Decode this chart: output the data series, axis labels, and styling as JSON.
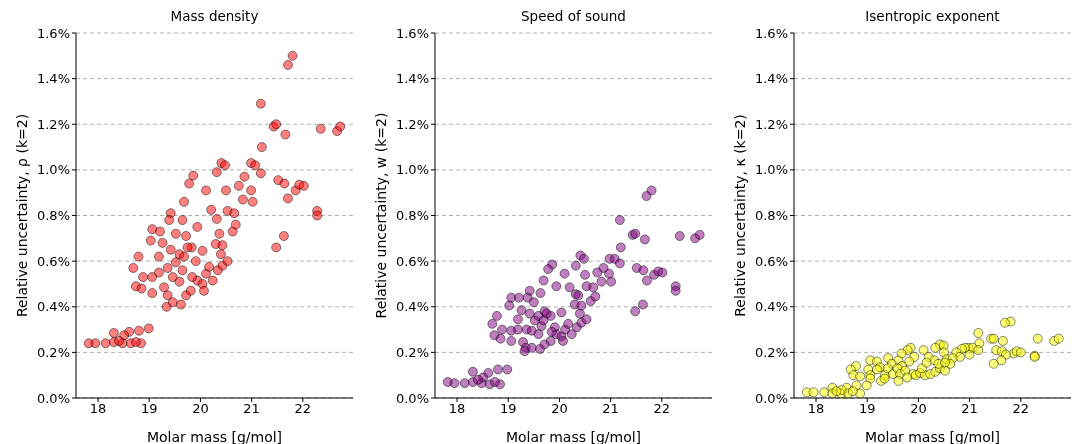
{
  "chart_data": [
    {
      "type": "scatter",
      "title": "Mass density",
      "xlabel": "Molar mass [g/mol]",
      "ylabel": "Relative uncertainty, ρ (k=2)",
      "color": "#ff0000",
      "marker": "circle",
      "grid": "y",
      "xlim": [
        17.57,
        22.98
      ],
      "xticks": [
        18,
        19,
        20,
        21,
        22
      ],
      "ylim": [
        0,
        1.6
      ],
      "yticks": [
        {
          "value": 0,
          "label": "0.0%"
        },
        {
          "value": 0.2,
          "label": "0.2%"
        },
        {
          "value": 0.4,
          "label": "0.4%"
        },
        {
          "value": 0.6,
          "label": "0.6%"
        },
        {
          "value": 0.8,
          "label": "0.8%"
        },
        {
          "value": 1.0,
          "label": "1.0%"
        },
        {
          "value": 1.2,
          "label": "1.2%"
        },
        {
          "value": 1.4,
          "label": "1.4%"
        },
        {
          "value": 1.6,
          "label": "1.6%"
        }
      ],
      "x": [
        21.8,
        21.71,
        21.18,
        21.43,
        21.48,
        21.66,
        22.35,
        22.67,
        22.73,
        21.2,
        20.99,
        21.07,
        21.18,
        21.52,
        21.64,
        21.86,
        21.93,
        22.02,
        21.71,
        22.28,
        22.28,
        21.63,
        21.48,
        21.02,
        20.99,
        19.86,
        19.78,
        20.41,
        20.48,
        20.32,
        20.11,
        20.5,
        20.86,
        20.75,
        20.83,
        19.68,
        19.42,
        19.39,
        19.06,
        19.21,
        19.65,
        19.94,
        19.52,
        20.21,
        20.32,
        20.53,
        20.66,
        20.63,
        20.69,
        19.83,
        19.72,
        19.26,
        19.03,
        18.79,
        18.69,
        18.74,
        18.85,
        18.88,
        19.06,
        19.06,
        19.19,
        19.19,
        19.29,
        19.36,
        19.42,
        19.52,
        19.59,
        19.65,
        19.75,
        19.68,
        19.91,
        19.46,
        19.59,
        19.36,
        19.34,
        19.46,
        19.62,
        19.72,
        19.81,
        19.94,
        20.04,
        20.11,
        20.24,
        20.34,
        20.43,
        20.53,
        20.4,
        20.3,
        20.07,
        19.84,
        20.17,
        20.04,
        20.43,
        20.37,
        17.82,
        17.95,
        18.15,
        18.31,
        18.31,
        18.48,
        18.61,
        18.51,
        18.64,
        18.8,
        18.84,
        18.99,
        18.41,
        18.74
      ],
      "values": [
        1.5,
        1.46,
        1.29,
        1.19,
        1.2,
        1.155,
        1.18,
        1.17,
        1.19,
        1.1,
        1.03,
        1.02,
        0.985,
        0.955,
        0.94,
        0.91,
        0.935,
        0.93,
        0.875,
        0.82,
        0.8,
        0.71,
        0.66,
        0.86,
        0.91,
        0.975,
        0.94,
        1.03,
        1.02,
        0.99,
        0.91,
        0.91,
        0.97,
        0.93,
        0.87,
        0.86,
        0.81,
        0.78,
        0.74,
        0.73,
        0.78,
        0.75,
        0.72,
        0.825,
        0.785,
        0.82,
        0.81,
        0.73,
        0.76,
        0.66,
        0.71,
        0.68,
        0.69,
        0.62,
        0.57,
        0.49,
        0.48,
        0.53,
        0.53,
        0.46,
        0.62,
        0.55,
        0.485,
        0.57,
        0.65,
        0.595,
        0.63,
        0.56,
        0.66,
        0.62,
        0.6,
        0.53,
        0.51,
        0.45,
        0.4,
        0.42,
        0.41,
        0.45,
        0.47,
        0.515,
        0.5,
        0.545,
        0.515,
        0.56,
        0.58,
        0.6,
        0.63,
        0.675,
        0.47,
        0.53,
        0.575,
        0.645,
        0.67,
        0.72,
        0.24,
        0.24,
        0.24,
        0.245,
        0.285,
        0.24,
        0.29,
        0.275,
        0.24,
        0.295,
        0.24,
        0.305,
        0.25,
        0.245
      ]
    },
    {
      "type": "scatter",
      "title": "Speed of sound",
      "xlabel": "Molar mass [g/mol]",
      "ylabel": "Relative uncertainty, w (k=2)",
      "color": "#800080",
      "marker": "circle",
      "grid": "y",
      "xlim": [
        17.57,
        22.98
      ],
      "xticks": [
        18,
        19,
        20,
        21,
        22
      ],
      "ylim": [
        0,
        1.6
      ],
      "yticks": [
        {
          "value": 0,
          "label": "0.0%"
        },
        {
          "value": 0.2,
          "label": "0.2%"
        },
        {
          "value": 0.4,
          "label": "0.4%"
        },
        {
          "value": 0.6,
          "label": "0.6%"
        },
        {
          "value": 0.8,
          "label": "0.8%"
        },
        {
          "value": 1.0,
          "label": "1.0%"
        },
        {
          "value": 1.2,
          "label": "1.2%"
        },
        {
          "value": 1.4,
          "label": "1.4%"
        },
        {
          "value": 1.6,
          "label": "1.6%"
        }
      ],
      "x": [
        21.8,
        21.7,
        21.18,
        21.43,
        21.48,
        21.67,
        22.35,
        22.65,
        22.74,
        21.2,
        20.98,
        21.08,
        21.18,
        21.51,
        21.64,
        21.85,
        21.93,
        22.01,
        21.71,
        22.27,
        22.27,
        21.63,
        21.48,
        21.01,
        20.97,
        20.41,
        20.48,
        20.32,
        19.86,
        19.78,
        20.1,
        20.5,
        20.86,
        20.74,
        20.82,
        19.69,
        19.42,
        19.38,
        19.06,
        19.21,
        19.63,
        19.94,
        19.5,
        20.2,
        20.32,
        20.53,
        20.66,
        20.61,
        20.7,
        19.83,
        19.71,
        19.26,
        19.02,
        18.78,
        18.69,
        18.73,
        18.85,
        18.88,
        19.06,
        19.06,
        19.19,
        19.19,
        19.29,
        19.36,
        19.42,
        19.52,
        19.59,
        19.65,
        19.75,
        19.69,
        19.91,
        19.46,
        19.59,
        19.34,
        19.32,
        19.46,
        19.62,
        19.71,
        19.83,
        19.94,
        20.04,
        20.11,
        20.24,
        20.34,
        20.43,
        20.53,
        20.4,
        20.3,
        20.07,
        19.85,
        20.17,
        20.04,
        20.43,
        20.37,
        17.82,
        17.95,
        18.15,
        18.31,
        18.31,
        18.48,
        18.61,
        18.51,
        18.64,
        18.8,
        18.84,
        18.98,
        18.41,
        18.74
      ],
      "values": [
        0.91,
        0.885,
        0.78,
        0.715,
        0.72,
        0.695,
        0.71,
        0.7,
        0.715,
        0.66,
        0.61,
        0.61,
        0.59,
        0.57,
        0.56,
        0.54,
        0.555,
        0.55,
        0.515,
        0.49,
        0.47,
        0.41,
        0.38,
        0.51,
        0.545,
        0.625,
        0.61,
        0.58,
        0.585,
        0.565,
        0.545,
        0.54,
        0.57,
        0.55,
        0.51,
        0.515,
        0.47,
        0.44,
        0.44,
        0.44,
        0.46,
        0.49,
        0.42,
        0.485,
        0.455,
        0.49,
        0.485,
        0.425,
        0.445,
        0.36,
        0.38,
        0.385,
        0.405,
        0.36,
        0.325,
        0.275,
        0.26,
        0.3,
        0.295,
        0.25,
        0.345,
        0.3,
        0.245,
        0.3,
        0.37,
        0.34,
        0.36,
        0.315,
        0.37,
        0.34,
        0.31,
        0.295,
        0.28,
        0.22,
        0.205,
        0.22,
        0.215,
        0.235,
        0.25,
        0.28,
        0.27,
        0.3,
        0.28,
        0.31,
        0.33,
        0.345,
        0.37,
        0.41,
        0.25,
        0.29,
        0.325,
        0.375,
        0.405,
        0.45,
        0.07,
        0.065,
        0.065,
        0.115,
        0.07,
        0.065,
        0.11,
        0.09,
        0.06,
        0.125,
        0.06,
        0.125,
        0.08,
        0.07
      ]
    },
    {
      "type": "scatter",
      "title": "Isentropic exponent",
      "xlabel": "Molar mass [g/mol]",
      "ylabel": "Relative uncertainty, κ (k=2)",
      "color": "#ffff00",
      "marker": "circle",
      "grid": "y",
      "xlim": [
        17.57,
        22.98
      ],
      "xticks": [
        18,
        19,
        20,
        21,
        22
      ],
      "ylim": [
        0,
        1.6
      ],
      "yticks": [
        {
          "value": 0,
          "label": "0.0%"
        },
        {
          "value": 0.2,
          "label": "0.2%"
        },
        {
          "value": 0.4,
          "label": "0.4%"
        },
        {
          "value": 0.6,
          "label": "0.6%"
        },
        {
          "value": 0.8,
          "label": "0.8%"
        },
        {
          "value": 1.0,
          "label": "1.0%"
        },
        {
          "value": 1.2,
          "label": "1.2%"
        },
        {
          "value": 1.4,
          "label": "1.4%"
        },
        {
          "value": 1.6,
          "label": "1.6%"
        }
      ],
      "x": [
        21.8,
        21.69,
        21.17,
        21.42,
        21.47,
        21.65,
        22.33,
        22.65,
        22.74,
        21.19,
        20.98,
        21.06,
        21.17,
        21.52,
        21.63,
        21.86,
        21.92,
        22.0,
        21.71,
        22.27,
        22.27,
        21.62,
        21.47,
        21.0,
        20.91,
        20.42,
        20.49,
        20.33,
        19.85,
        19.79,
        20.1,
        20.5,
        20.85,
        20.74,
        20.81,
        19.67,
        19.41,
        19.06,
        19.19,
        19.61,
        19.92,
        19.48,
        20.2,
        20.31,
        20.55,
        20.67,
        20.62,
        19.82,
        19.68,
        19.25,
        19.02,
        18.78,
        18.68,
        18.73,
        18.86,
        19.06,
        19.06,
        19.19,
        19.27,
        19.35,
        19.4,
        19.5,
        19.59,
        19.64,
        19.74,
        19.9,
        19.34,
        19.61,
        19.78,
        19.95,
        20.03,
        20.13,
        20.23,
        20.33,
        20.42,
        20.52,
        20.39,
        20.52,
        20.07,
        20.16,
        17.82,
        17.95,
        18.16,
        18.32,
        18.32,
        18.49,
        18.6,
        18.5,
        18.63,
        18.79,
        18.86,
        18.99,
        18.4,
        18.72
      ],
      "values": [
        0.335,
        0.33,
        0.285,
        0.26,
        0.26,
        0.25,
        0.26,
        0.25,
        0.26,
        0.24,
        0.22,
        0.22,
        0.21,
        0.21,
        0.205,
        0.195,
        0.205,
        0.2,
        0.19,
        0.185,
        0.18,
        0.165,
        0.15,
        0.19,
        0.22,
        0.235,
        0.23,
        0.22,
        0.22,
        0.21,
        0.21,
        0.2,
        0.215,
        0.2,
        0.18,
        0.195,
        0.175,
        0.165,
        0.16,
        0.165,
        0.18,
        0.15,
        0.18,
        0.165,
        0.17,
        0.175,
        0.15,
        0.16,
        0.14,
        0.135,
        0.125,
        0.14,
        0.125,
        0.1,
        0.095,
        0.1,
        0.085,
        0.125,
        0.075,
        0.1,
        0.13,
        0.105,
        0.13,
        0.105,
        0.12,
        0.105,
        0.085,
        0.075,
        0.09,
        0.1,
        0.11,
        0.1,
        0.105,
        0.115,
        0.13,
        0.12,
        0.15,
        0.155,
        0.13,
        0.155,
        0.025,
        0.025,
        0.025,
        0.045,
        0.02,
        0.02,
        0.045,
        0.035,
        0.02,
        0.055,
        0.02,
        0.055,
        0.03,
        0.03
      ]
    }
  ]
}
